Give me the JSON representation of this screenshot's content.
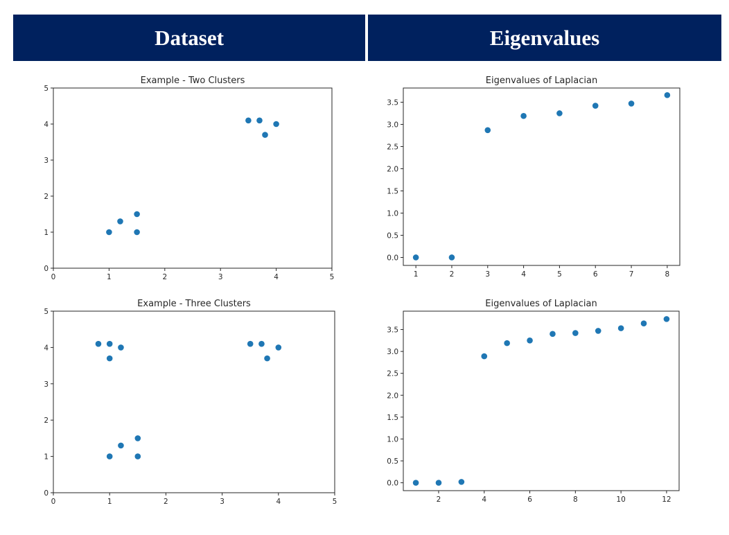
{
  "headers": {
    "left": "Dataset",
    "right": "Eigenvalues"
  },
  "colors": {
    "header_bg": "#00215e",
    "header_text": "#ffffff",
    "point": "#1f77b4"
  },
  "chart_data": [
    {
      "type": "scatter",
      "title": "Example - Two Clusters",
      "xlabel": "",
      "ylabel": "",
      "xlim": [
        0,
        5
      ],
      "ylim": [
        0,
        5
      ],
      "xticks": [
        0,
        1,
        2,
        3,
        4,
        5
      ],
      "yticks": [
        0,
        1,
        2,
        3,
        4,
        5
      ],
      "x": [
        1.0,
        1.2,
        1.5,
        1.5,
        3.5,
        3.7,
        3.8,
        4.0
      ],
      "y": [
        1.0,
        1.3,
        1.5,
        1.0,
        4.1,
        4.1,
        3.7,
        4.0
      ],
      "grid": false
    },
    {
      "type": "scatter",
      "title": "Eigenvalues of Laplacian",
      "xlabel": "",
      "ylabel": "",
      "xlim": [
        0.65,
        8.35
      ],
      "ylim": [
        -0.18,
        3.82
      ],
      "xticks": [
        1,
        2,
        3,
        4,
        5,
        6,
        7,
        8
      ],
      "yticks": [
        0.0,
        0.5,
        1.0,
        1.5,
        2.0,
        2.5,
        3.0,
        3.5
      ],
      "ytick_labels": [
        "0.0",
        "0.5",
        "1.0",
        "1.5",
        "2.0",
        "2.5",
        "3.0",
        "3.5"
      ],
      "x": [
        1,
        2,
        3,
        4,
        5,
        6,
        7,
        8
      ],
      "y": [
        0.0,
        0.0,
        2.87,
        3.19,
        3.25,
        3.42,
        3.47,
        3.66
      ],
      "grid": false
    },
    {
      "type": "scatter",
      "title": "Example - Three Clusters",
      "xlabel": "",
      "ylabel": "",
      "xlim": [
        0,
        5
      ],
      "ylim": [
        0,
        5
      ],
      "xticks": [
        0,
        1,
        2,
        3,
        4,
        5
      ],
      "yticks": [
        0,
        1,
        2,
        3,
        4,
        5
      ],
      "x": [
        0.8,
        1.0,
        1.0,
        1.2,
        1.0,
        1.2,
        1.5,
        1.5,
        3.5,
        3.7,
        3.8,
        4.0
      ],
      "y": [
        4.1,
        4.1,
        3.7,
        4.0,
        1.0,
        1.3,
        1.5,
        1.0,
        4.1,
        4.1,
        3.7,
        4.0
      ],
      "grid": false
    },
    {
      "type": "scatter",
      "title": "Eigenvalues of Laplacian",
      "xlabel": "",
      "ylabel": "",
      "xlim": [
        0.45,
        12.55
      ],
      "ylim": [
        -0.18,
        3.92
      ],
      "xticks": [
        2,
        4,
        6,
        8,
        10,
        12
      ],
      "yticks": [
        0.0,
        0.5,
        1.0,
        1.5,
        2.0,
        2.5,
        3.0,
        3.5
      ],
      "ytick_labels": [
        "0.0",
        "0.5",
        "1.0",
        "1.5",
        "2.0",
        "2.5",
        "3.0",
        "3.5"
      ],
      "x": [
        1,
        2,
        3,
        4,
        5,
        6,
        7,
        8,
        9,
        10,
        11,
        12
      ],
      "y": [
        0.0,
        0.0,
        0.02,
        2.89,
        3.19,
        3.25,
        3.4,
        3.42,
        3.47,
        3.53,
        3.64,
        3.74
      ],
      "grid": false
    }
  ]
}
